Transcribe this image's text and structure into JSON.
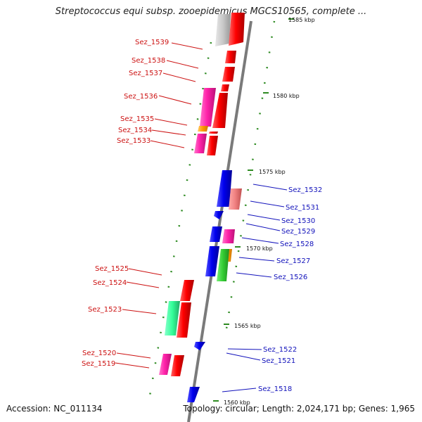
{
  "title": "Streptococcus equi subsp. zooepidemicus MGCS10565, complete ...",
  "footer": {
    "accession": "Accession: NC_011134",
    "summary": "Topology: circular; Length: 2,024,171 bp; Genes: 1,965"
  },
  "colors": {
    "backbone": "#808080",
    "tick": "#2e8b22",
    "left_label": "#cc1111",
    "right_label": "#1111bb"
  },
  "axis": {
    "scale_labels": [
      "1585 kbp",
      "1580 kbp",
      "1575 kbp",
      "1570 kbp",
      "1565 kbp",
      "1560 kbp"
    ]
  },
  "left_labels": [
    "Sez_1539",
    "Sez_1538",
    "Sez_1537",
    "Sez_1536",
    "Sez_1535",
    "Sez_1534",
    "Sez_1533",
    "Sez_1525",
    "Sez_1524",
    "Sez_1523",
    "Sez_1520",
    "Sez_1519"
  ],
  "right_labels": [
    "Sez_1532",
    "Sez_1531",
    "Sez_1530",
    "Sez_1529",
    "Sez_1528",
    "Sez_1527",
    "Sez_1526",
    "Sez_1522",
    "Sez_1521",
    "Sez_1518"
  ],
  "feature_colors": {
    "cds_forward": "#ff0000",
    "cds_reverse": "#0000ff",
    "magenta": "#ff33aa",
    "pink": "#f08080",
    "grey": "#c0c0c0",
    "orange": "#ff9900",
    "green": "#33cc33",
    "teal": "#33ff99"
  }
}
